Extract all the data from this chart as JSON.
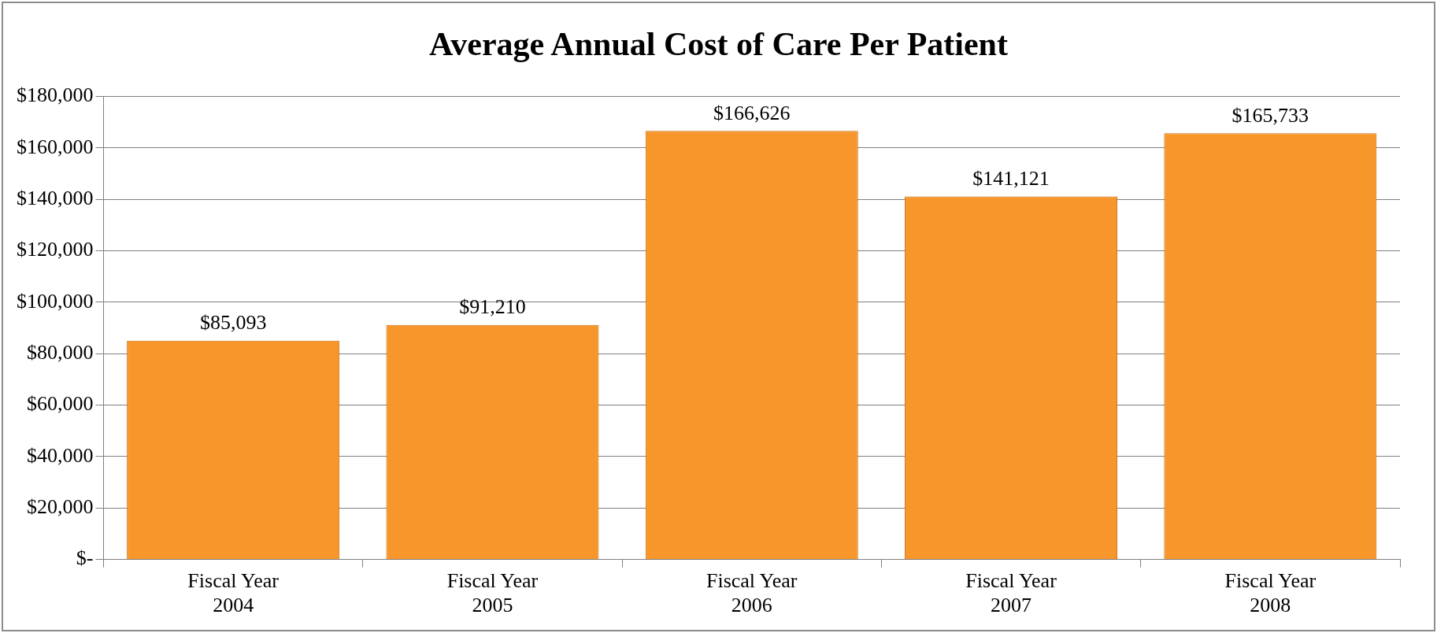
{
  "chart_data": {
    "type": "bar",
    "title": "Average Annual Cost of Care Per Patient",
    "categories": [
      "Fiscal Year\n2004",
      "Fiscal Year\n2005",
      "Fiscal Year\n2006",
      "Fiscal Year\n2007",
      "Fiscal Year\n2008"
    ],
    "values": [
      85093,
      91210,
      166626,
      141121,
      165733
    ],
    "value_labels": [
      "$85,093",
      "$91,210",
      "$166,626",
      "$141,121",
      "$165,733"
    ],
    "color": "#f7962a",
    "ylim": [
      0,
      180000
    ],
    "yticks": [
      {
        "value": 0,
        "label": "$-"
      },
      {
        "value": 20000,
        "label": "$20,000"
      },
      {
        "value": 40000,
        "label": "$40,000"
      },
      {
        "value": 60000,
        "label": "$60,000"
      },
      {
        "value": 80000,
        "label": "$80,000"
      },
      {
        "value": 100000,
        "label": "$100,000"
      },
      {
        "value": 120000,
        "label": "$120,000"
      },
      {
        "value": 140000,
        "label": "$140,000"
      },
      {
        "value": 160000,
        "label": "$160,000"
      },
      {
        "value": 180000,
        "label": "$180,000"
      }
    ],
    "grid": "y",
    "legend": false
  }
}
